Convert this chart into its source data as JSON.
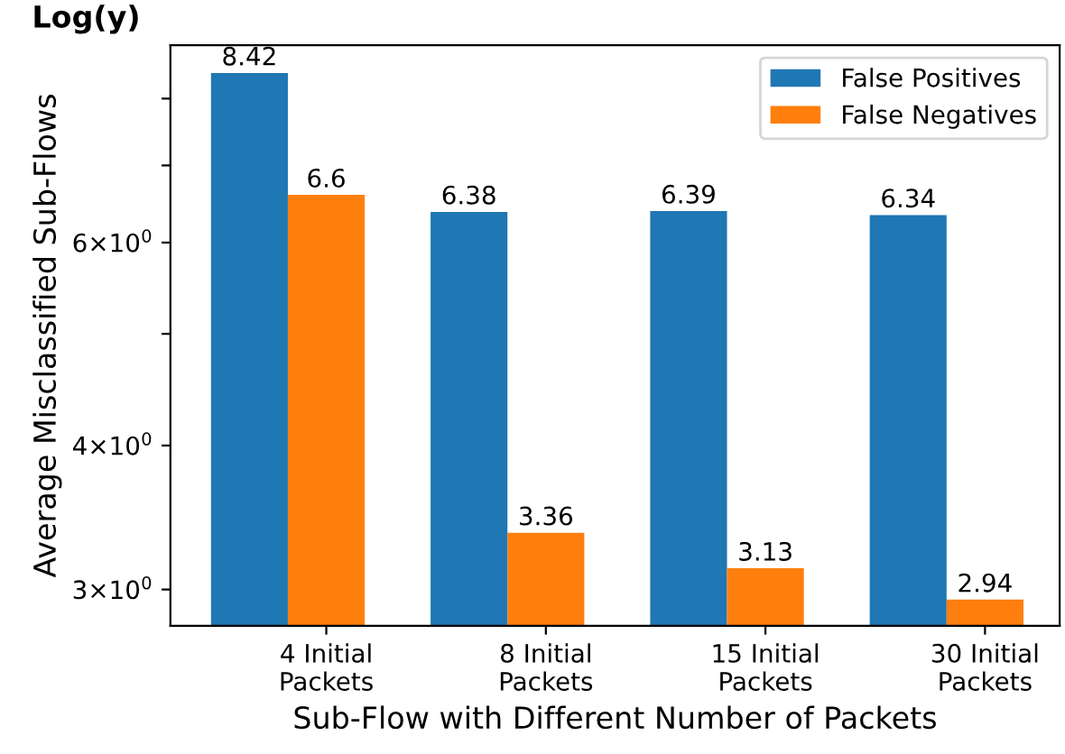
{
  "chart_data": {
    "type": "bar",
    "title": "Log(y)",
    "xlabel": "Sub-Flow with Different Number of Packets",
    "ylabel": "Average Misclassified Sub-Flows",
    "categories": [
      "4 Initial\nPackets",
      "8 Initial\nPackets",
      "15 Initial\nPackets",
      "30 Initial\nPackets"
    ],
    "series": [
      {
        "name": "False Positives",
        "color": "#1f77b4",
        "values": [
          8.42,
          6.38,
          6.39,
          6.34
        ]
      },
      {
        "name": "False Negatives",
        "color": "#ff7f0e",
        "values": [
          6.6,
          3.36,
          3.13,
          2.94
        ]
      }
    ],
    "log": "y",
    "ylim": [
      2.79,
      8.9
    ],
    "yticks": [
      {
        "value": 3,
        "label": "3×10$^{0}$"
      },
      {
        "value": 4,
        "label": "4×10$^{0}$"
      },
      {
        "value": 5,
        "label": null
      },
      {
        "value": 6,
        "label": "6×10$^{0}$"
      },
      {
        "value": 7,
        "label": null
      },
      {
        "value": 8,
        "label": null
      }
    ],
    "data_labels": true,
    "legend": "top right",
    "grid": false
  }
}
